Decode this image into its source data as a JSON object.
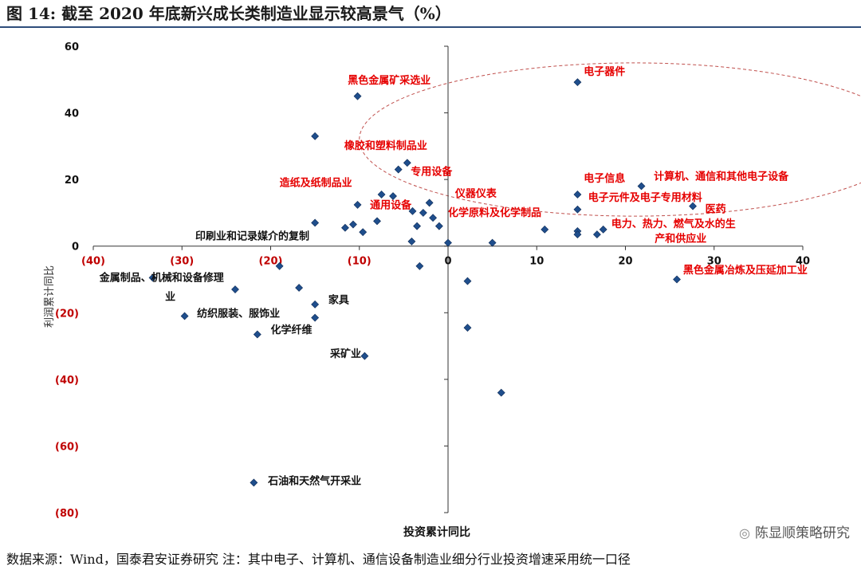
{
  "page": {
    "title": "图 14:  截至 2020 年底新兴成长类制造业显示较高景气（%）",
    "source": "数据来源：Wind，国泰君安证券研究  注：其中电子、计算机、通信设备制造业细分行业投资增速采用统一口径",
    "watermark": "陈显顺策略研究"
  },
  "colors": {
    "point": "#1f4e8c",
    "red_label": "#e60000",
    "black_label": "#111111",
    "ellipse": "#c0504d",
    "axis": "#333333",
    "neg_tick": "#c00000"
  },
  "chart_data": {
    "type": "scatter",
    "xlabel": "投资累计同比",
    "ylabel": "利润累计同比",
    "xlim": [
      -40,
      40
    ],
    "ylim": [
      -80,
      60
    ],
    "x_ticks": [
      {
        "value": -40,
        "label": "(40)"
      },
      {
        "value": -30,
        "label": "(30)"
      },
      {
        "value": -20,
        "label": "(20)"
      },
      {
        "value": -10,
        "label": "(10)"
      },
      {
        "value": 0,
        "label": "0"
      },
      {
        "value": 10,
        "label": "10"
      },
      {
        "value": 20,
        "label": "20"
      },
      {
        "value": 30,
        "label": "30"
      },
      {
        "value": 40,
        "label": "40"
      }
    ],
    "y_ticks": [
      {
        "value": 60,
        "label": "60"
      },
      {
        "value": 40,
        "label": "40"
      },
      {
        "value": 20,
        "label": "20"
      },
      {
        "value": 0,
        "label": "0"
      },
      {
        "value": -20,
        "label": "(20)"
      },
      {
        "value": -40,
        "label": "(40)"
      },
      {
        "value": -60,
        "label": "(60)"
      },
      {
        "value": -80,
        "label": "(80)"
      }
    ],
    "highlight_ellipse": {
      "cx": 21,
      "cy": 32,
      "rx": 31,
      "ry": 23
    },
    "points": [
      {
        "x": 14.6,
        "y": 49.2
      },
      {
        "x": -10.2,
        "y": 45.0
      },
      {
        "x": -15.0,
        "y": 33.0
      },
      {
        "x": -4.6,
        "y": 25.0
      },
      {
        "x": -5.6,
        "y": 23.0
      },
      {
        "x": -7.5,
        "y": 15.5
      },
      {
        "x": -6.2,
        "y": 15.0
      },
      {
        "x": -10.2,
        "y": 12.4
      },
      {
        "x": -2.1,
        "y": 13.0
      },
      {
        "x": -8.0,
        "y": 7.5
      },
      {
        "x": -4.0,
        "y": 10.5
      },
      {
        "x": -2.8,
        "y": 10.0
      },
      {
        "x": -1.7,
        "y": 8.5
      },
      {
        "x": -3.5,
        "y": 6.0
      },
      {
        "x": -1.0,
        "y": 6.0
      },
      {
        "x": -15.0,
        "y": 7.0
      },
      {
        "x": -10.7,
        "y": 6.5
      },
      {
        "x": -11.6,
        "y": 5.5
      },
      {
        "x": -9.6,
        "y": 4.2
      },
      {
        "x": -4.1,
        "y": 1.4
      },
      {
        "x": 0.0,
        "y": 1.0
      },
      {
        "x": 5.0,
        "y": 1.0
      },
      {
        "x": 10.9,
        "y": 5.0
      },
      {
        "x": 14.6,
        "y": 15.5
      },
      {
        "x": 14.6,
        "y": 11.0
      },
      {
        "x": 14.6,
        "y": 4.5
      },
      {
        "x": 14.6,
        "y": 3.5
      },
      {
        "x": 16.8,
        "y": 3.5
      },
      {
        "x": 17.5,
        "y": 5.0
      },
      {
        "x": 21.8,
        "y": 18.0
      },
      {
        "x": 27.6,
        "y": 12.0
      },
      {
        "x": 25.8,
        "y": -10.0
      },
      {
        "x": -3.2,
        "y": -6.0
      },
      {
        "x": -19.0,
        "y": -6.0
      },
      {
        "x": -33.3,
        "y": -9.5
      },
      {
        "x": -24.0,
        "y": -13.0
      },
      {
        "x": -16.8,
        "y": -12.5
      },
      {
        "x": -15.0,
        "y": -17.5
      },
      {
        "x": -15.0,
        "y": -21.5
      },
      {
        "x": -29.7,
        "y": -21.0
      },
      {
        "x": -21.5,
        "y": -26.5
      },
      {
        "x": -9.4,
        "y": -33.0
      },
      {
        "x": 2.2,
        "y": -10.5
      },
      {
        "x": 2.2,
        "y": -24.5
      },
      {
        "x": 6.0,
        "y": -44.0
      },
      {
        "x": -21.9,
        "y": -71.0
      }
    ],
    "annotations": [
      {
        "text": "电子器件",
        "x": 15.3,
        "y": 51.4,
        "color": "red"
      },
      {
        "text": "黑色金属矿采选业",
        "x": -11.3,
        "y": 48.7,
        "color": "red"
      },
      {
        "text": "橡胶和塑料制品业",
        "x": -11.7,
        "y": 29.1,
        "color": "red"
      },
      {
        "text": "专用设备",
        "x": -4.2,
        "y": 21.3,
        "color": "red"
      },
      {
        "text": "造纸及纸制品业",
        "x": -19.0,
        "y": 18.0,
        "color": "red"
      },
      {
        "text": "仪器仪表",
        "x": 0.8,
        "y": 14.8,
        "color": "red"
      },
      {
        "text": "通用设备",
        "x": -8.8,
        "y": 11.3,
        "color": "red"
      },
      {
        "text": "化学原料及化学制品",
        "x": 0.0,
        "y": 9.0,
        "color": "red"
      },
      {
        "text": "电子信息",
        "x": 15.3,
        "y": 19.3,
        "color": "red"
      },
      {
        "text": "计算机、通信和其他电子设备",
        "x": 23.2,
        "y": 19.9,
        "color": "red"
      },
      {
        "text": "电子元件及电子专用材料",
        "x": 15.8,
        "y": 13.6,
        "color": "red"
      },
      {
        "text": "医药",
        "x": 29.0,
        "y": 10.1,
        "color": "red"
      },
      {
        "text": "电力、热力、燃气及水的生",
        "x": 18.4,
        "y": 5.7,
        "color": "red"
      },
      {
        "text": "产和供应业",
        "x": 23.3,
        "y": 1.3,
        "color": "red"
      },
      {
        "text": "黑色金属冶炼及压延加工业",
        "x": 26.5,
        "y": -8.2,
        "color": "red"
      },
      {
        "text": "印刷业和记录媒介的复制",
        "x": -28.5,
        "y": 2.0,
        "color": "black"
      },
      {
        "text": "金属制品、机械和设备修理",
        "x": -39.3,
        "y": -10.5,
        "color": "black"
      },
      {
        "text": "业",
        "x": -31.9,
        "y": -16.2,
        "color": "black"
      },
      {
        "text": "家具",
        "x": -13.5,
        "y": -17.2,
        "color": "black"
      },
      {
        "text": "纺织服装、服饰业",
        "x": -28.3,
        "y": -21.2,
        "color": "black"
      },
      {
        "text": "化学纤维",
        "x": -20.0,
        "y": -26.2,
        "color": "black"
      },
      {
        "text": "采矿业",
        "x": -13.3,
        "y": -33.3,
        "color": "black"
      },
      {
        "text": "石油和天然气开采业",
        "x": -20.3,
        "y": -71.5,
        "color": "black"
      }
    ]
  }
}
